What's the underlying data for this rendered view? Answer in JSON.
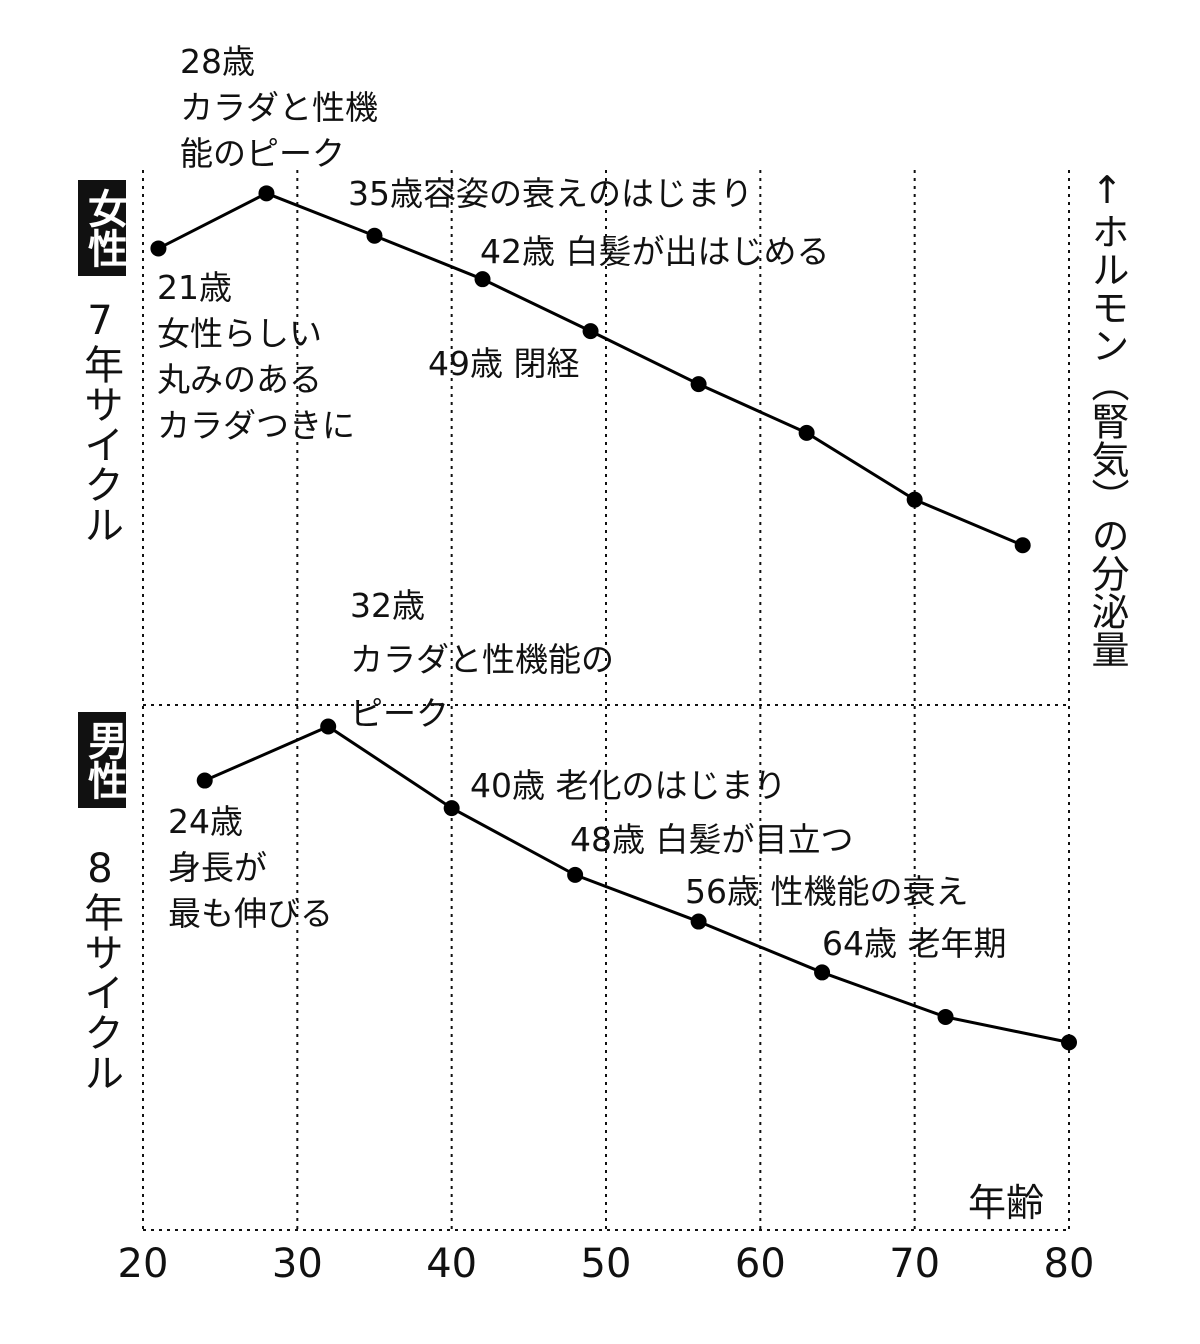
{
  "chart_data": {
    "type": "line",
    "x_label": "年齢",
    "y_label": "↑ホルモン（腎気）の分泌量",
    "xlim": [
      20,
      80
    ],
    "xticks": [
      20,
      30,
      40,
      50,
      60,
      70,
      80
    ],
    "ylim": [
      0,
      100
    ],
    "grid": true,
    "series": [
      {
        "name": "女性",
        "cycle": "7年サイクル",
        "color": "#000000",
        "x": [
          21,
          28,
          35,
          42,
          49,
          56,
          63,
          70,
          77
        ],
        "values": [
          92.6,
          97.8,
          93.8,
          89.7,
          84.8,
          79.8,
          75.2,
          68.9,
          64.6
        ]
      },
      {
        "name": "男性",
        "cycle": "8年サイクル",
        "color": "#000000",
        "x": [
          24,
          32,
          40,
          48,
          56,
          64,
          72,
          80
        ],
        "values": [
          42.4,
          47.5,
          39.8,
          33.5,
          29.1,
          24.3,
          20.1,
          17.7
        ]
      }
    ],
    "annotations": [
      {
        "lines": [
          "28歳",
          "カラダと性機",
          "能のピーク"
        ]
      },
      {
        "lines": [
          "35歳容姿の衰えのはじまり"
        ]
      },
      {
        "lines": [
          "42歳 白髪が出はじめる"
        ]
      },
      {
        "lines": [
          "21歳",
          "女性らしい",
          "丸みのある",
          "カラダつきに"
        ]
      },
      {
        "lines": [
          "49歳 閉経"
        ]
      },
      {
        "lines": [
          "32歳",
          "カラダと性機能の",
          "ピーク"
        ]
      },
      {
        "lines": [
          "24歳",
          "身長が",
          "最も伸びる"
        ]
      },
      {
        "lines": [
          "40歳 老化のはじまり"
        ]
      },
      {
        "lines": [
          "48歳 白髪が目立つ"
        ]
      },
      {
        "lines": [
          "56歳 性機能の衰え"
        ]
      },
      {
        "lines": [
          "64歳 老年期"
        ]
      }
    ]
  }
}
